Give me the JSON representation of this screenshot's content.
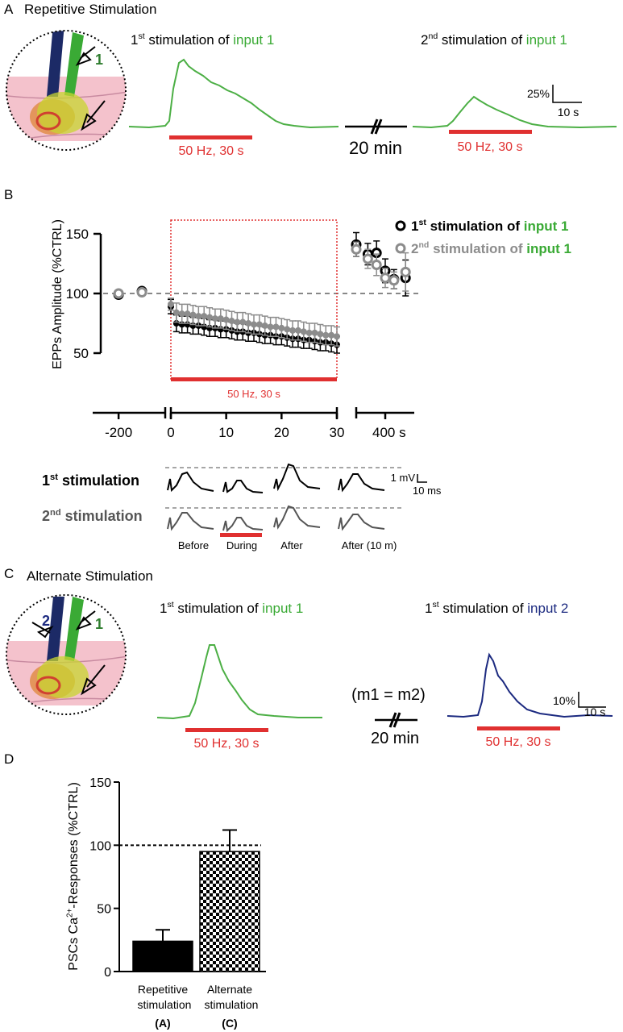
{
  "panel_a": {
    "label": "A",
    "title": "Repetitive Stimulation",
    "illustration_labels": [
      "1"
    ],
    "trace_titles": [
      [
        {
          "text": "1"
        },
        {
          "text": "st",
          "sup": true
        },
        {
          "text": " stimulation of "
        },
        {
          "text": "input 1",
          "color": "#3aaa35"
        }
      ],
      [
        {
          "text": "2"
        },
        {
          "text": "nd",
          "sup": true
        },
        {
          "text": " stimulation of "
        },
        {
          "text": "input 1",
          "color": "#3aaa35"
        }
      ]
    ],
    "stimulus_labels": [
      "50 Hz, 30 s",
      "50 Hz, 30 s"
    ],
    "interval": "20 min",
    "scale": {
      "y": "25%",
      "x": "10 s"
    }
  },
  "panel_b": {
    "label": "B",
    "trace_rows": [
      [
        {
          "text": "1"
        },
        {
          "text": "st",
          "sup": true
        },
        {
          "text": " stimulation"
        }
      ],
      [
        {
          "text": "2"
        },
        {
          "text": "nd",
          "sup": true
        },
        {
          "text": " stimulation"
        }
      ]
    ],
    "conditions": [
      "Before",
      "During",
      "After",
      "After (10 m)"
    ],
    "scale": {
      "y": "1 mV",
      "x": "10 ms"
    }
  },
  "panel_c": {
    "label": "C",
    "title": "Alternate Stimulation",
    "illustration_labels": [
      "2",
      "1"
    ],
    "trace_titles": [
      [
        {
          "text": "1"
        },
        {
          "text": "st",
          "sup": true
        },
        {
          "text": " stimulation of "
        },
        {
          "text": "input 1",
          "color": "#3aaa35"
        }
      ],
      [
        {
          "text": "1"
        },
        {
          "text": "st",
          "sup": true
        },
        {
          "text": " stimulation of "
        },
        {
          "text": "input 2",
          "color": "#1c2a80"
        }
      ]
    ],
    "stimulus_labels": [
      "50 Hz, 30 s",
      "50 Hz, 30 s"
    ],
    "equality": "(m1 = m2)",
    "interval": "20 min",
    "scale": {
      "y": "10%",
      "x": "10 s"
    }
  },
  "panel_d": {
    "label": "D"
  },
  "chart_data": [
    {
      "type": "scatter",
      "ylabel": "EPPs Amplitude (%CTRL)",
      "x": [
        -200,
        -110,
        0,
        1,
        2,
        3,
        4,
        5,
        6,
        7,
        8,
        9,
        10,
        11,
        12,
        13,
        14,
        15,
        16,
        17,
        18,
        19,
        20,
        21,
        22,
        23,
        24,
        25,
        26,
        27,
        28,
        29,
        30,
        380,
        388,
        394,
        400,
        406,
        414
      ],
      "x_segments": [
        [
          -300,
          -20
        ],
        [
          0,
          30
        ],
        [
          380,
          420
        ]
      ],
      "xticks": [
        -200,
        0,
        10,
        20,
        30,
        {
          "value": 400,
          "label": "400 s"
        }
      ],
      "ylim": [
        50,
        150
      ],
      "yticks": [
        50,
        100,
        150
      ],
      "reference_line": 100,
      "stimulus": {
        "label": "50 Hz, 30 s",
        "start": 0,
        "end": 30
      },
      "series": [
        {
          "name": [
            {
              "text": "1"
            },
            {
              "text": "st",
              "sup": true
            },
            {
              "text": " stimulation of "
            },
            {
              "text": "input 1",
              "color": "#3aaa35"
            }
          ],
          "color": "#000000",
          "values": [
            99,
            102,
            89,
            75,
            74,
            74,
            73,
            73,
            72,
            71,
            71,
            70,
            70,
            69,
            68,
            68,
            67,
            67,
            66,
            65,
            65,
            64,
            64,
            63,
            62,
            62,
            61,
            61,
            60,
            59,
            59,
            58,
            57,
            141,
            133,
            134,
            119,
            112,
            113
          ],
          "errors": [
            2,
            2,
            6,
            7,
            7,
            7,
            7,
            7,
            7,
            7,
            7,
            7,
            7,
            7,
            7,
            7,
            7,
            7,
            7,
            7,
            7,
            7,
            7,
            7,
            7,
            7,
            7,
            7,
            7,
            7,
            7,
            7,
            7,
            10,
            9,
            10,
            10,
            8,
            15
          ]
        },
        {
          "name": [
            {
              "text": "2"
            },
            {
              "text": "nd",
              "sup": true
            },
            {
              "text": " stimulation of "
            },
            {
              "text": "input 1",
              "color": "#3aaa35"
            }
          ],
          "color": "#8c8c8c",
          "values": [
            100,
            101,
            91,
            84,
            83,
            83,
            82,
            81,
            81,
            80,
            79,
            79,
            78,
            77,
            76,
            76,
            75,
            74,
            74,
            73,
            72,
            72,
            71,
            70,
            69,
            69,
            68,
            67,
            67,
            66,
            65,
            65,
            64,
            137,
            129,
            124,
            113,
            111,
            118
          ],
          "errors": [
            2,
            2,
            5,
            8,
            8,
            8,
            8,
            8,
            8,
            8,
            8,
            8,
            8,
            8,
            8,
            8,
            8,
            8,
            8,
            8,
            8,
            8,
            8,
            8,
            8,
            8,
            8,
            8,
            8,
            8,
            8,
            8,
            8,
            6,
            8,
            9,
            8,
            7,
            16
          ]
        }
      ]
    },
    {
      "type": "bar",
      "ylabel": [
        {
          "text": "PSCs Ca"
        },
        {
          "text": "2+",
          "sup": true
        },
        {
          "text": "-Responses (%CTRL)"
        }
      ],
      "categories": [
        "Repetitive stimulation",
        "Alternate stimulation"
      ],
      "category_notes": [
        "(A)",
        "(C)"
      ],
      "values": [
        24,
        95
      ],
      "errors": [
        9,
        17
      ],
      "fills": [
        "#000000",
        "checker"
      ],
      "ylim": [
        0,
        150
      ],
      "yticks": [
        0,
        50,
        100,
        150
      ],
      "reference_line": 100
    }
  ]
}
